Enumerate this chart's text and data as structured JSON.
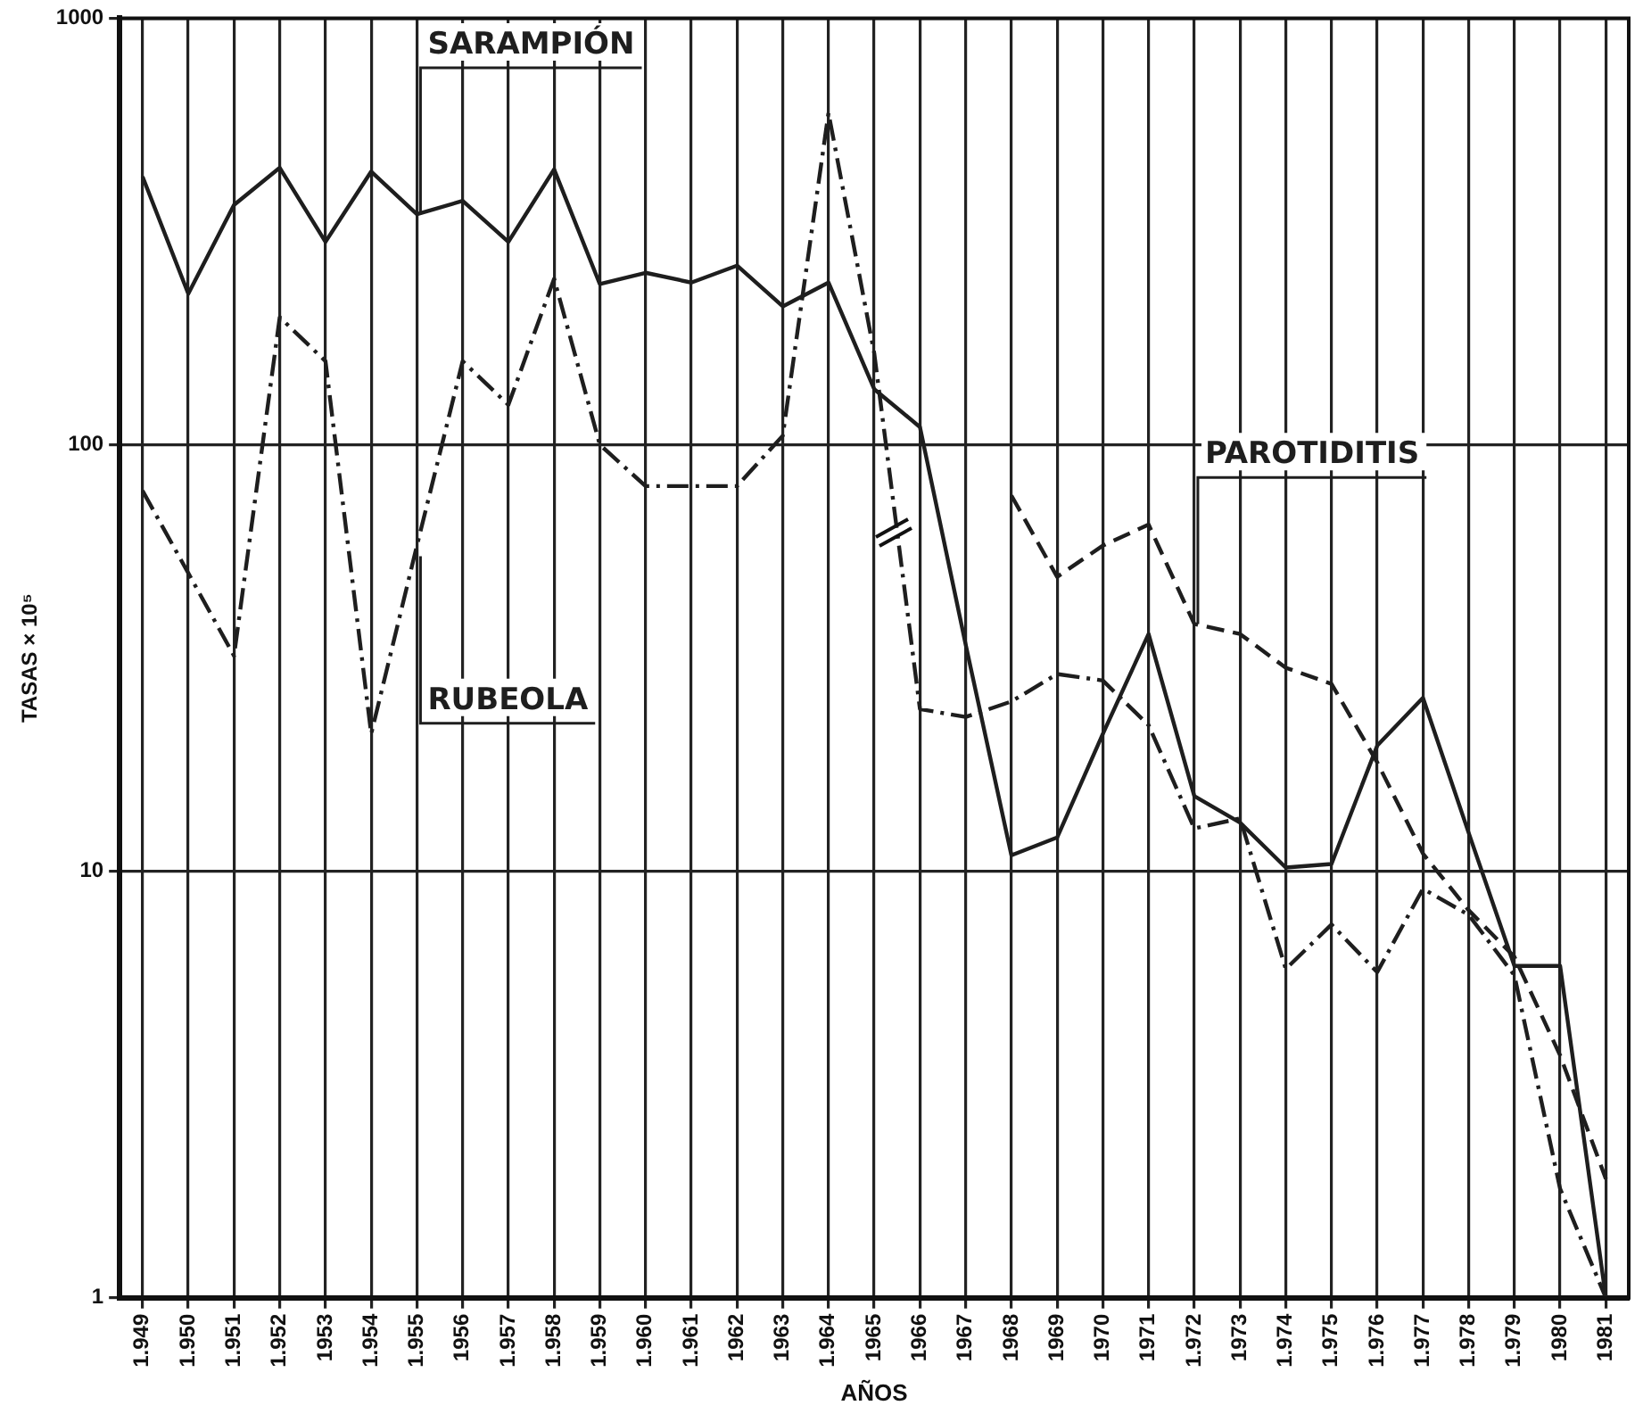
{
  "chart_data": {
    "type": "line",
    "xlabel": "AÑOS",
    "ylabel": "TASAS × 10⁵",
    "categories": [
      "1.949",
      "1.950",
      "1.951",
      "1.952",
      "1953",
      "1.954",
      "1.955",
      "1956",
      "1.957",
      "1.958",
      "1.959",
      "1.960",
      "1.961",
      "1962",
      "1963",
      "1.964",
      "1965",
      "1966",
      "1967",
      "1968",
      "1969",
      "1970",
      "1971",
      "1.972",
      "1973",
      "1.974",
      "1.975",
      "1.976",
      "1.977",
      "1.978",
      "1.979",
      "1980",
      "1981"
    ],
    "series": [
      {
        "color": "#1e1e1e",
        "line_style": "solid",
        "values": [
          425,
          226,
          365,
          446,
          299,
          437,
          347,
          373,
          299,
          442,
          238,
          253,
          240,
          263,
          211,
          240,
          135,
          110,
          34,
          10.9,
          12,
          21,
          36,
          15,
          13,
          10.2,
          10.4,
          19.7,
          25.5,
          12.3,
          6,
          6,
          1
        ]
      },
      {
        "color": "#1e1e1e",
        "line_style": "dotted",
        "values": [
          78,
          50,
          32,
          199,
          157,
          21,
          58,
          157,
          124,
          245,
          100,
          80,
          80,
          80,
          105,
          600,
          164,
          24,
          23,
          25,
          29,
          28,
          22,
          12.6,
          13.3,
          5.9,
          7.5,
          5.8,
          9.1,
          7.9,
          5.7,
          1.8,
          1
        ]
      },
      {
        "color": "#1e1e1e",
        "line_style": "dashed",
        "values": [
          null,
          null,
          null,
          null,
          null,
          null,
          null,
          null,
          null,
          null,
          null,
          null,
          null,
          null,
          null,
          null,
          null,
          null,
          null,
          76,
          49,
          58,
          65,
          38,
          36,
          30,
          27.5,
          18,
          11,
          8.1,
          6.3,
          3.7,
          1.9
        ]
      }
    ],
    "annotations": [
      {
        "text": "SARAMPIÓN",
        "x": "1.955",
        "y": 347
      },
      {
        "text": "RUBEOLA",
        "x": "1.955",
        "y": 58
      },
      {
        "text": "PAROTIDITIS",
        "x": "1.972",
        "y": 38
      }
    ],
    "log": true,
    "ylim": [
      1,
      1000
    ],
    "yticks": [
      1,
      10,
      100,
      1000
    ],
    "grid": true,
    "legend": false,
    "marker": "none"
  }
}
